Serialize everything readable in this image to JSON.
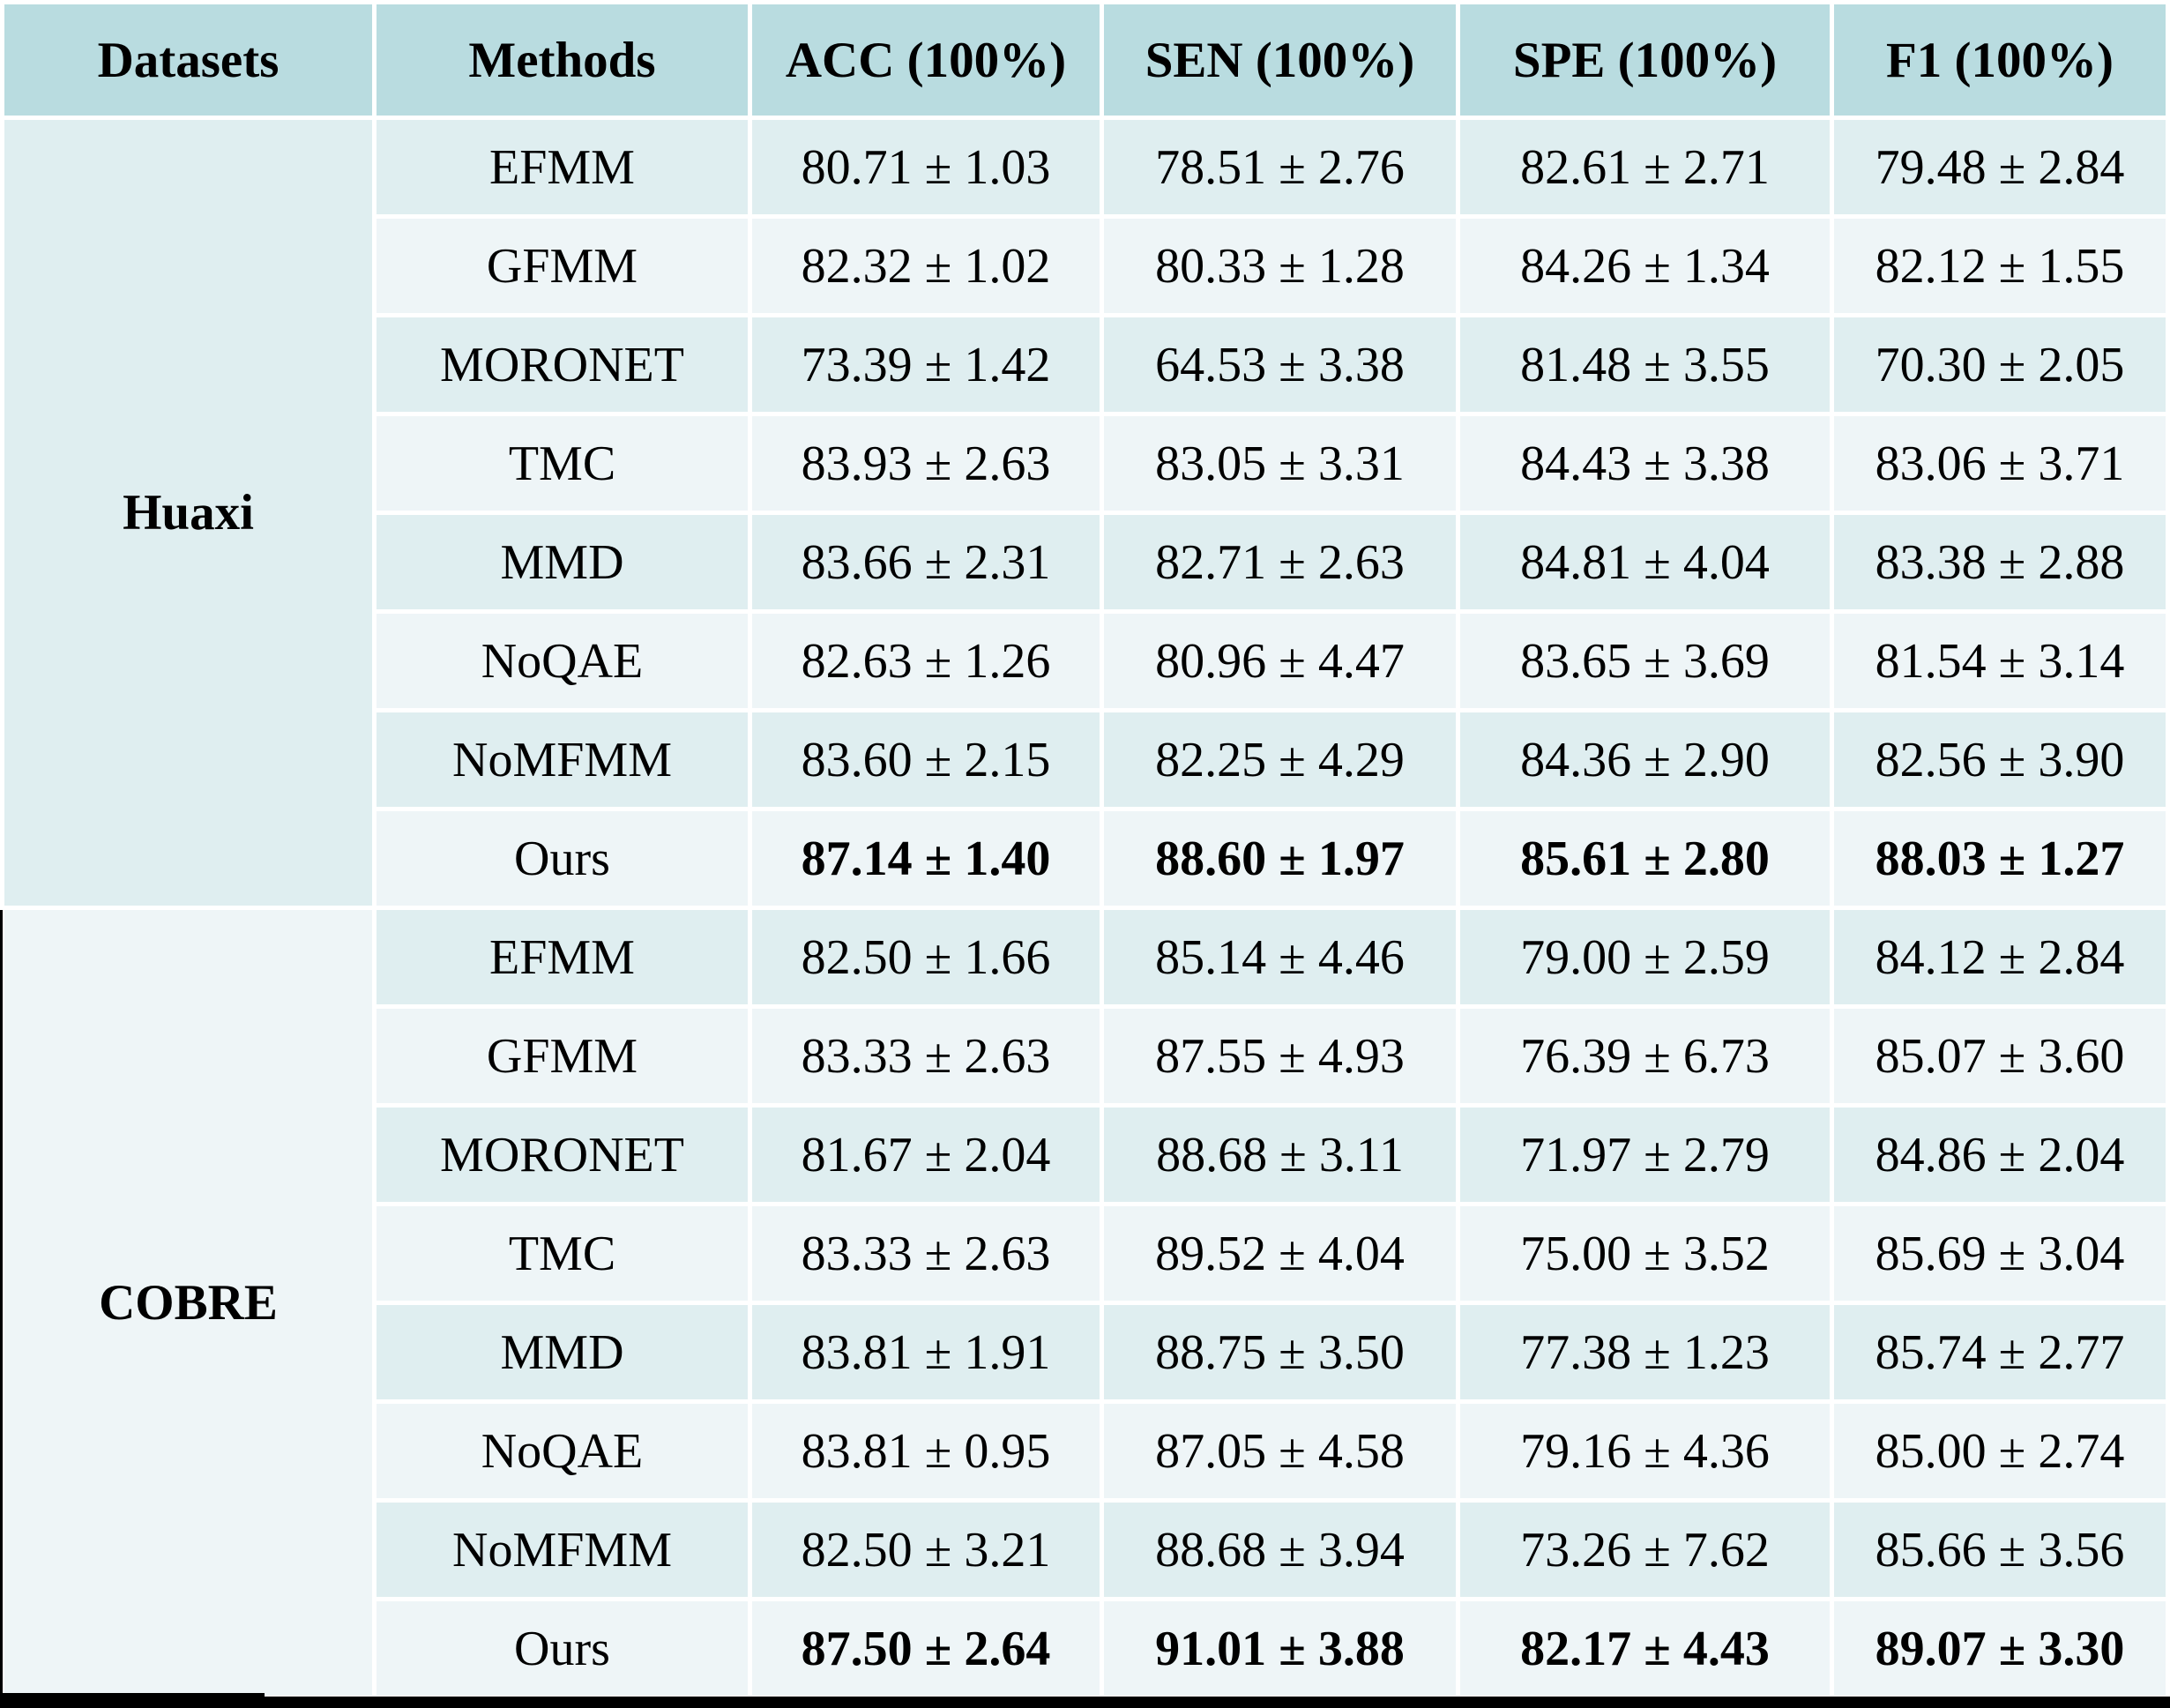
{
  "colors": {
    "header_bg": "#b9dce0",
    "row_dark": "#dfeef0",
    "row_light": "#eef5f7",
    "rule_black": "#000000",
    "text": "#000000"
  },
  "table": {
    "columns": [
      "Datasets",
      "Methods",
      "ACC (100%)",
      "SEN (100%)",
      "SPE (100%)",
      "F1 (100%)"
    ],
    "groups": [
      {
        "dataset": "Huaxi",
        "rows": [
          {
            "method": "EFMM",
            "acc": "80.71 ± 1.03",
            "sen": "78.51 ± 2.76",
            "spe": "82.61 ± 2.71",
            "f1": "79.48 ± 2.84",
            "highlight": false
          },
          {
            "method": "GFMM",
            "acc": "82.32 ± 1.02",
            "sen": "80.33 ± 1.28",
            "spe": "84.26 ± 1.34",
            "f1": "82.12 ± 1.55",
            "highlight": false
          },
          {
            "method": "MORONET",
            "acc": "73.39 ± 1.42",
            "sen": "64.53 ± 3.38",
            "spe": "81.48 ± 3.55",
            "f1": "70.30 ± 2.05",
            "highlight": false
          },
          {
            "method": "TMC",
            "acc": "83.93 ± 2.63",
            "sen": "83.05 ± 3.31",
            "spe": "84.43 ± 3.38",
            "f1": "83.06 ± 3.71",
            "highlight": false
          },
          {
            "method": "MMD",
            "acc": "83.66 ± 2.31",
            "sen": "82.71 ± 2.63",
            "spe": "84.81 ± 4.04",
            "f1": "83.38 ± 2.88",
            "highlight": false
          },
          {
            "method": "NoQAE",
            "acc": "82.63 ± 1.26",
            "sen": "80.96 ± 4.47",
            "spe": "83.65 ± 3.69",
            "f1": "81.54 ± 3.14",
            "highlight": false
          },
          {
            "method": "NoMFMM",
            "acc": "83.60 ± 2.15",
            "sen": "82.25 ± 4.29",
            "spe": "84.36 ± 2.90",
            "f1": "82.56 ± 3.90",
            "highlight": false
          },
          {
            "method": "Ours",
            "acc": "87.14 ± 1.40",
            "sen": "88.60 ± 1.97",
            "spe": "85.61 ± 2.80",
            "f1": "88.03 ± 1.27",
            "highlight": true
          }
        ]
      },
      {
        "dataset": "COBRE",
        "rows": [
          {
            "method": "EFMM",
            "acc": "82.50 ± 1.66",
            "sen": "85.14 ± 4.46",
            "spe": "79.00 ± 2.59",
            "f1": "84.12 ± 2.84",
            "highlight": false
          },
          {
            "method": "GFMM",
            "acc": "83.33 ± 2.63",
            "sen": "87.55 ± 4.93",
            "spe": "76.39 ± 6.73",
            "f1": "85.07 ± 3.60",
            "highlight": false
          },
          {
            "method": "MORONET",
            "acc": "81.67 ± 2.04",
            "sen": "88.68 ± 3.11",
            "spe": "71.97 ± 2.79",
            "f1": "84.86 ± 2.04",
            "highlight": false
          },
          {
            "method": "TMC",
            "acc": "83.33 ± 2.63",
            "sen": "89.52 ± 4.04",
            "spe": "75.00 ± 3.52",
            "f1": "85.69 ± 3.04",
            "highlight": false
          },
          {
            "method": "MMD",
            "acc": "83.81 ± 1.91",
            "sen": "88.75 ± 3.50",
            "spe": "77.38 ± 1.23",
            "f1": "85.74 ± 2.77",
            "highlight": false
          },
          {
            "method": "NoQAE",
            "acc": "83.81 ± 0.95",
            "sen": "87.05 ± 4.58",
            "spe": "79.16 ± 4.36",
            "f1": "85.00 ± 2.74",
            "highlight": false
          },
          {
            "method": "NoMFMM",
            "acc": "82.50 ± 3.21",
            "sen": "88.68 ± 3.94",
            "spe": "73.26 ± 7.62",
            "f1": "85.66 ± 3.56",
            "highlight": false
          },
          {
            "method": "Ours",
            "acc": "87.50 ± 2.64",
            "sen": "91.01 ± 3.88",
            "spe": "82.17 ± 4.43",
            "f1": "89.07 ± 3.30",
            "highlight": true
          }
        ]
      }
    ]
  }
}
